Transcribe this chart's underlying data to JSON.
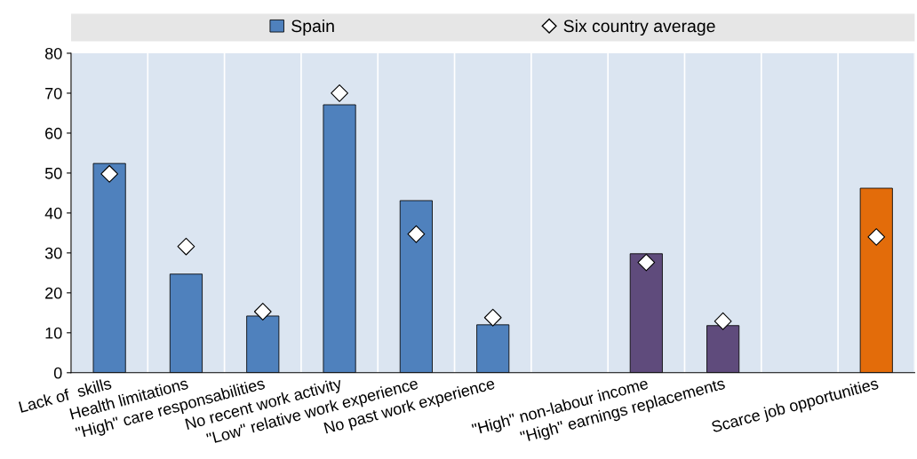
{
  "chart_data": {
    "type": "bar",
    "categories": [
      "Lack of  skills",
      "Health limitations",
      "\"High\" care responsabilities",
      "No recent work activity",
      "\"Low\" relative work experience",
      "No past work experience",
      null,
      "\"High\" non-labour income",
      "\"High\" earnings replacements",
      null,
      "Scarce job opportunities"
    ],
    "series": [
      {
        "name": "Spain",
        "color": "#4f81bd",
        "colors": [
          "#4f81bd",
          "#4f81bd",
          "#4f81bd",
          "#4f81bd",
          "#4f81bd",
          "#4f81bd",
          "#4f81bd",
          "#5f4b7c",
          "#5f4b7c",
          "#5f4b7c",
          "#e36c0a"
        ],
        "values": [
          52.4,
          24.7,
          14.2,
          67.1,
          43.1,
          12.0,
          null,
          29.8,
          11.8,
          null,
          46.2
        ]
      },
      {
        "name": "Six country average",
        "type": "scatter",
        "marker": "diamond",
        "color": "#ffffff",
        "values": [
          49.8,
          31.6,
          15.3,
          70.0,
          34.7,
          13.8,
          null,
          27.6,
          12.9,
          null,
          34.0
        ]
      }
    ],
    "ylim": [
      0,
      80
    ],
    "yticks": [
      0,
      10,
      20,
      30,
      40,
      50,
      60,
      70,
      80
    ],
    "grid": "x",
    "legend": "top"
  }
}
